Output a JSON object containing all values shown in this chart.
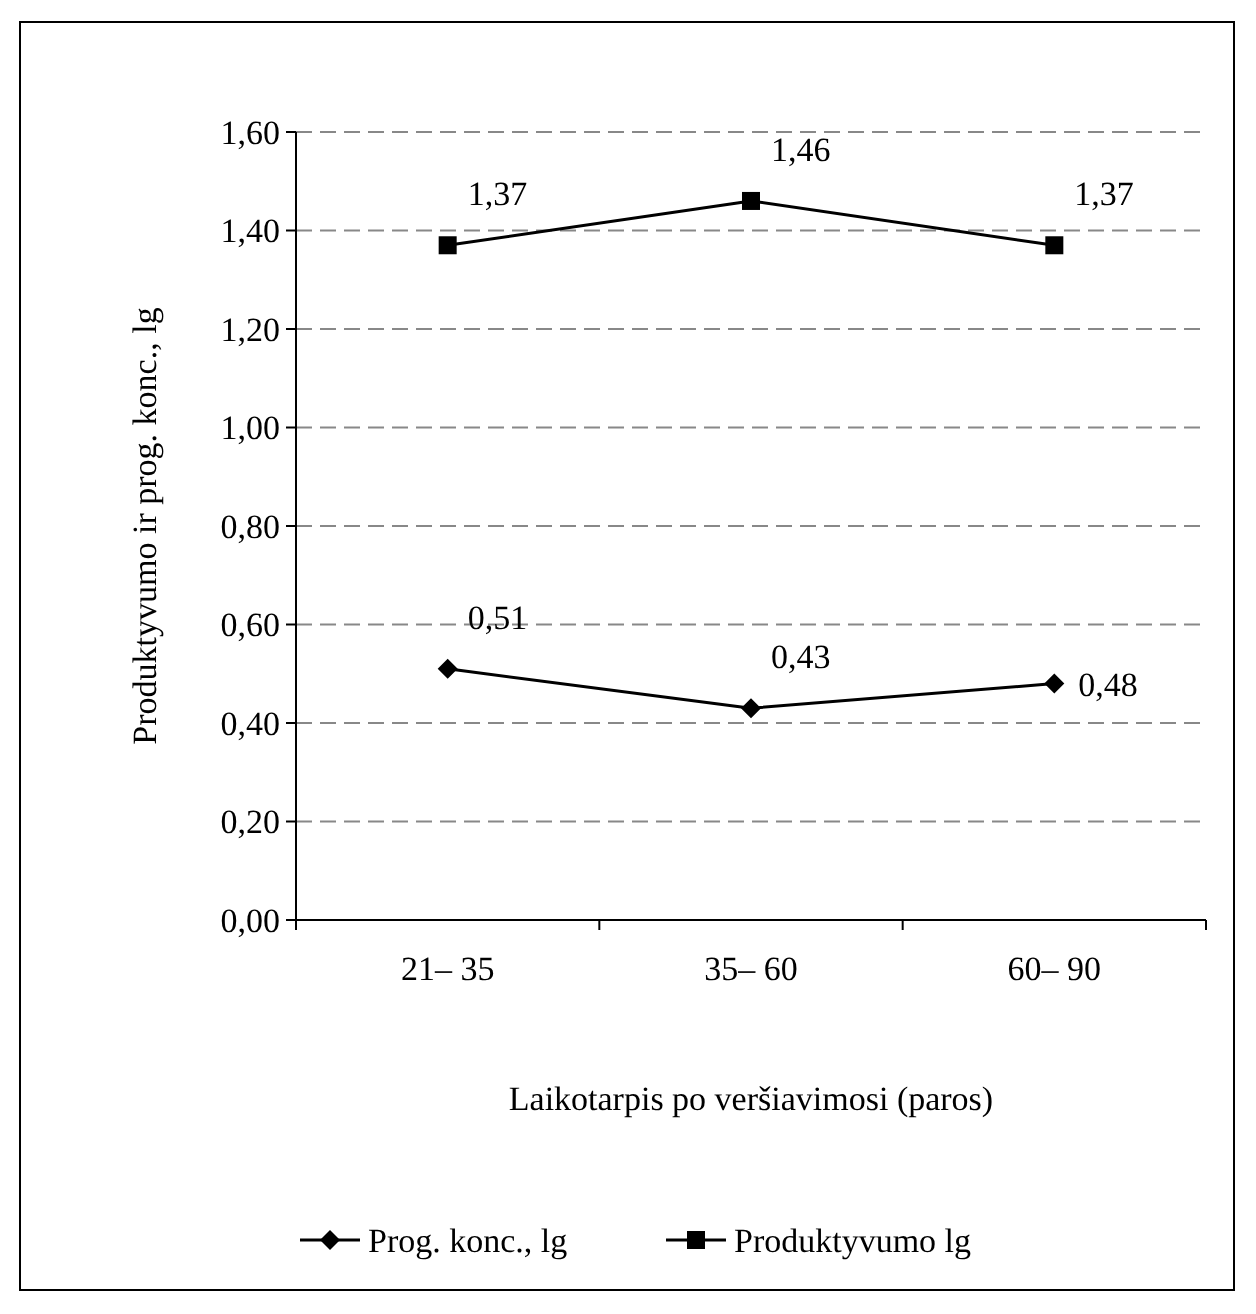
{
  "chart_data": {
    "type": "line",
    "xlabel": "Laikotarpis po veršiavimosi (paros)",
    "ylabel": "Produktyvumo ir prog. konc., lg",
    "categories": [
      "21– 35",
      "35– 60",
      "60– 90"
    ],
    "series": [
      {
        "name": "Prog. konc., lg",
        "color": "#000000",
        "marker": "diamond",
        "values": [
          0.51,
          0.43,
          0.48
        ],
        "value_labels": [
          "0,51",
          "0,43",
          "0,48"
        ]
      },
      {
        "name": "Produktyvumo lg",
        "color": "#000000",
        "marker": "square",
        "values": [
          1.37,
          1.46,
          1.37
        ],
        "value_labels": [
          "1,37",
          "1,46",
          "1,37"
        ]
      }
    ],
    "ylim": [
      0,
      1.6
    ],
    "yticks": [
      {
        "value": 0,
        "label": "0,00"
      },
      {
        "value": 0.2,
        "label": "0,20"
      },
      {
        "value": 0.4,
        "label": "0,40"
      },
      {
        "value": 0.6,
        "label": "0,60"
      },
      {
        "value": 0.8,
        "label": "0,80"
      },
      {
        "value": 1,
        "label": "1,00"
      },
      {
        "value": 1.2,
        "label": "1,20"
      },
      {
        "value": 1.4,
        "label": "1,40"
      },
      {
        "value": 1.6,
        "label": "1,60"
      }
    ],
    "grid": "y",
    "legend": "bottom",
    "line_style": "solid"
  }
}
